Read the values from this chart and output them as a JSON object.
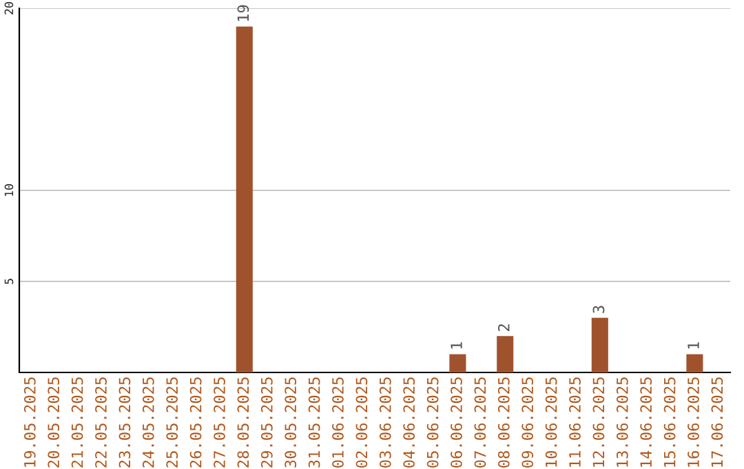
{
  "chart_data": {
    "type": "bar",
    "categories": [
      "19.05.2025",
      "20.05.2025",
      "21.05.2025",
      "22.05.2025",
      "23.05.2025",
      "24.05.2025",
      "25.05.2025",
      "26.05.2025",
      "27.05.2025",
      "28.05.2025",
      "29.05.2025",
      "30.05.2025",
      "31.05.2025",
      "01.06.2025",
      "02.06.2025",
      "03.06.2025",
      "04.06.2025",
      "05.06.2025",
      "06.06.2025",
      "07.06.2025",
      "08.06.2025",
      "09.06.2025",
      "10.06.2025",
      "11.06.2025",
      "12.06.2025",
      "13.06.2025",
      "14.06.2025",
      "15.06.2025",
      "16.06.2025",
      "17.06.2025"
    ],
    "values": [
      0,
      0,
      0,
      0,
      0,
      0,
      0,
      0,
      0,
      19,
      0,
      0,
      0,
      0,
      0,
      0,
      0,
      0,
      1,
      0,
      2,
      0,
      0,
      0,
      3,
      0,
      0,
      0,
      1,
      0
    ],
    "value_labels": [
      null,
      null,
      null,
      null,
      null,
      null,
      null,
      null,
      null,
      "19",
      null,
      null,
      null,
      null,
      null,
      null,
      null,
      null,
      "1",
      null,
      "2",
      null,
      null,
      null,
      "3",
      null,
      null,
      null,
      "1",
      null
    ],
    "color": "#a0522d",
    "ylim": [
      0,
      20
    ],
    "yticks": [
      5,
      10,
      20
    ],
    "grid": "y"
  }
}
